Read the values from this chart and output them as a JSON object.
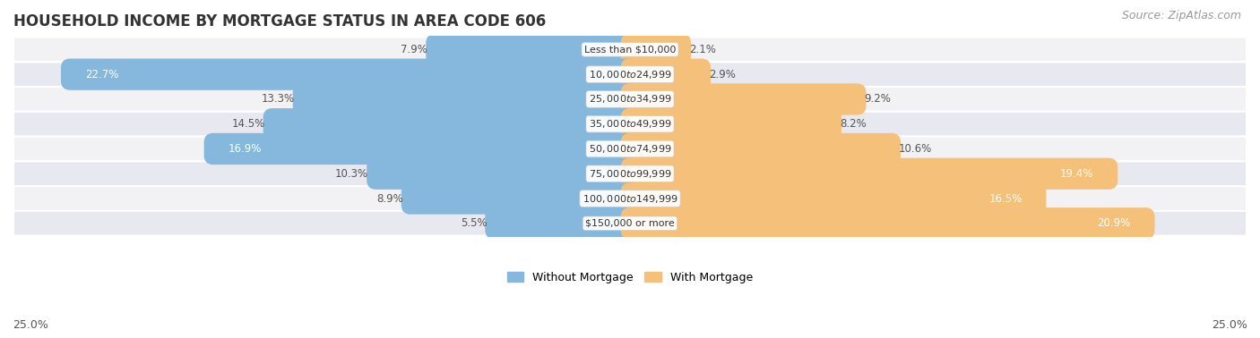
{
  "title": "HOUSEHOLD INCOME BY MORTGAGE STATUS IN AREA CODE 606",
  "source": "Source: ZipAtlas.com",
  "categories": [
    "Less than $10,000",
    "$10,000 to $24,999",
    "$25,000 to $34,999",
    "$35,000 to $49,999",
    "$50,000 to $74,999",
    "$75,000 to $99,999",
    "$100,000 to $149,999",
    "$150,000 or more"
  ],
  "without_mortgage": [
    7.9,
    22.7,
    13.3,
    14.5,
    16.9,
    10.3,
    8.9,
    5.5
  ],
  "with_mortgage": [
    2.1,
    2.9,
    9.2,
    8.2,
    10.6,
    19.4,
    16.5,
    20.9
  ],
  "color_without": "#85b8dc",
  "color_with": "#f5c07a",
  "bg_row_light": "#f2f2f5",
  "bg_row_mid": "#e8e8f0",
  "xlim": 25.0,
  "legend_without": "Without Mortgage",
  "legend_with": "With Mortgage",
  "title_fontsize": 12,
  "source_fontsize": 9,
  "bar_height": 0.52,
  "white_label_threshold": 15.0
}
